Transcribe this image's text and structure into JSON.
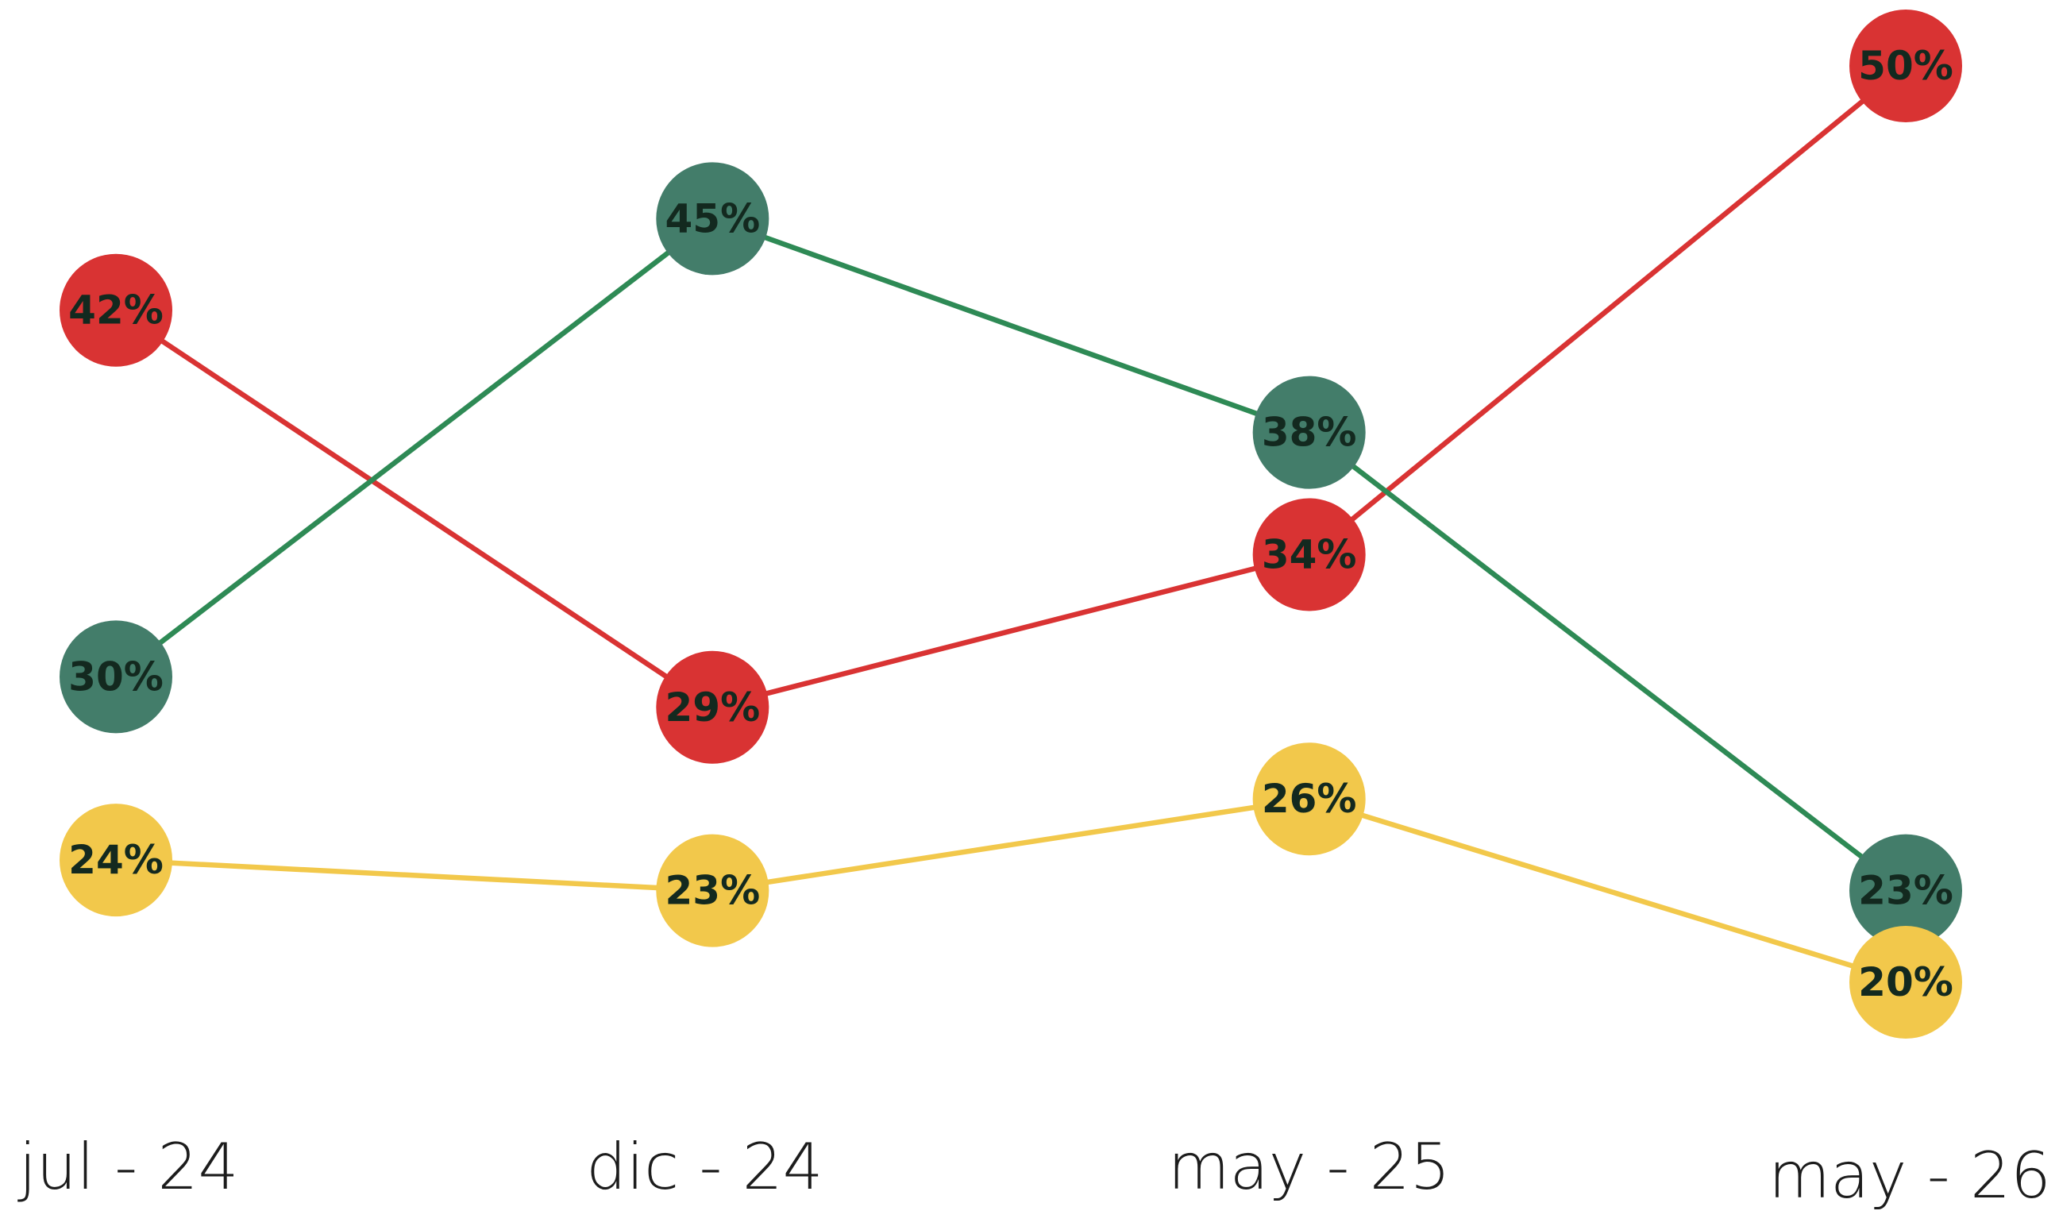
{
  "chart_data": {
    "type": "line",
    "categories": [
      "jul - 24",
      "dic - 24",
      "may - 25",
      "may - 26"
    ],
    "series": [
      {
        "color": "#d93333",
        "marker_color": "#d93333",
        "values": [
          42,
          29,
          34,
          50
        ],
        "value_labels": [
          "42%",
          "29%",
          "34%",
          "50%"
        ]
      },
      {
        "color": "#2e8a55",
        "marker_color": "#437d6a",
        "values": [
          30,
          45,
          38,
          23
        ],
        "value_labels": [
          "30%",
          "45%",
          "38%",
          "23%"
        ]
      },
      {
        "color": "#f2c84b",
        "marker_color": "#f2c84b",
        "values": [
          24,
          23,
          26,
          20
        ],
        "value_labels": [
          "24%",
          "23%",
          "26%",
          "20%"
        ]
      }
    ]
  }
}
